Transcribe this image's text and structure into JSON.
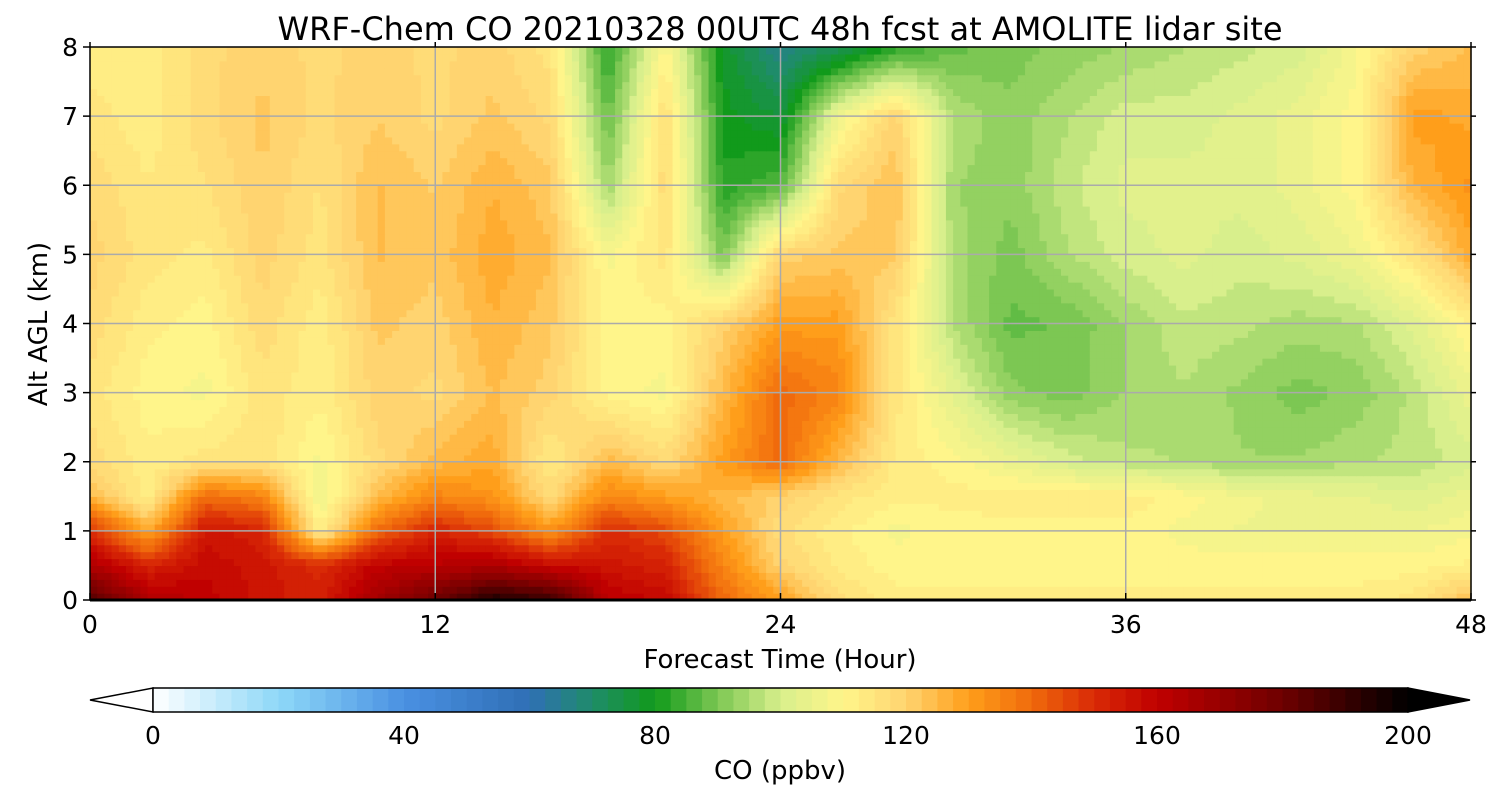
{
  "chart_data": {
    "type": "heatmap",
    "title": "WRF-Chem CO  20210328 00UTC 48h fcst at AMOLITE lidar site",
    "xlabel": "Forecast Time (Hour)",
    "ylabel": "Alt AGL (km)",
    "xlim": [
      0,
      48
    ],
    "ylim": [
      0,
      8
    ],
    "x_ticks": [
      0,
      12,
      24,
      36,
      48
    ],
    "y_ticks": [
      0,
      1,
      2,
      3,
      4,
      5,
      6,
      7,
      8
    ],
    "grid": true,
    "colorbar": {
      "label": "CO  (ppbv)",
      "range": [
        0,
        200
      ],
      "ticks": [
        0,
        40,
        80,
        120,
        160,
        200
      ],
      "extend": "both",
      "anchor_values": [
        0,
        20,
        40,
        60,
        70,
        80,
        90,
        100,
        110,
        120,
        130,
        140,
        150,
        160,
        180,
        200
      ],
      "anchor_colors": [
        "#ffffff",
        "#8ed8f8",
        "#4a90e2",
        "#2f6fb5",
        "#1f8c6a",
        "#119a1b",
        "#7cc753",
        "#d8ef8c",
        "#fff58a",
        "#ffd470",
        "#ff9e1a",
        "#f06a0c",
        "#d92a06",
        "#c00000",
        "#6e0000",
        "#000000"
      ]
    },
    "x": [
      0,
      2,
      4,
      6,
      8,
      10,
      12,
      14,
      16,
      18,
      20,
      22,
      24,
      26,
      28,
      30,
      32,
      34,
      36,
      38,
      40,
      42,
      44,
      46,
      48
    ],
    "y": [
      0,
      0.5,
      1,
      1.5,
      2,
      3,
      4,
      5,
      6,
      7,
      8
    ],
    "values": [
      [
        185,
        165,
        160,
        155,
        152,
        168,
        180,
        195,
        190,
        162,
        158,
        140,
        130,
        117,
        112,
        112,
        112,
        112,
        112,
        112,
        112,
        112,
        112,
        115,
        125
      ],
      [
        165,
        152,
        158,
        155,
        150,
        160,
        162,
        165,
        158,
        155,
        152,
        135,
        120,
        113,
        110,
        110,
        110,
        110,
        110,
        110,
        110,
        110,
        110,
        110,
        112
      ],
      [
        150,
        128,
        155,
        152,
        112,
        140,
        152,
        145,
        132,
        150,
        145,
        130,
        117,
        112,
        108,
        110,
        110,
        110,
        110,
        108,
        106,
        106,
        106,
        106,
        108
      ],
      [
        125,
        112,
        140,
        135,
        105,
        125,
        135,
        132,
        118,
        135,
        130,
        125,
        120,
        115,
        112,
        112,
        113,
        113,
        113,
        110,
        107,
        105,
        104,
        102,
        105
      ],
      [
        118,
        112,
        115,
        116,
        108,
        118,
        125,
        128,
        113,
        125,
        118,
        130,
        140,
        125,
        113,
        110,
        105,
        100,
        97,
        96,
        94,
        94,
        96,
        97,
        100
      ],
      [
        115,
        110,
        108,
        115,
        112,
        120,
        118,
        124,
        120,
        110,
        108,
        125,
        140,
        135,
        115,
        103,
        92,
        90,
        94,
        96,
        93,
        90,
        92,
        97,
        105
      ],
      [
        118,
        112,
        110,
        118,
        112,
        122,
        120,
        126,
        122,
        110,
        110,
        120,
        130,
        130,
        115,
        96,
        88,
        89,
        94,
        98,
        97,
        95,
        96,
        102,
        112
      ],
      [
        120,
        115,
        113,
        120,
        115,
        124,
        122,
        128,
        124,
        108,
        115,
        90,
        120,
        122,
        122,
        95,
        90,
        96,
        100,
        102,
        100,
        102,
        106,
        115,
        128
      ],
      [
        118,
        114,
        116,
        121,
        116,
        124,
        121,
        126,
        122,
        94,
        118,
        82,
        86,
        118,
        124,
        94,
        92,
        98,
        102,
        102,
        102,
        105,
        110,
        126,
        132
      ],
      [
        115,
        112,
        118,
        122,
        118,
        121,
        118,
        122,
        118,
        88,
        117,
        80,
        76,
        106,
        120,
        96,
        92,
        96,
        100,
        100,
        102,
        105,
        110,
        130,
        128
      ],
      [
        112,
        112,
        118,
        120,
        118,
        120,
        118,
        120,
        115,
        82,
        110,
        78,
        66,
        72,
        82,
        88,
        90,
        92,
        94,
        96,
        98,
        100,
        108,
        120,
        124
      ]
    ]
  }
}
